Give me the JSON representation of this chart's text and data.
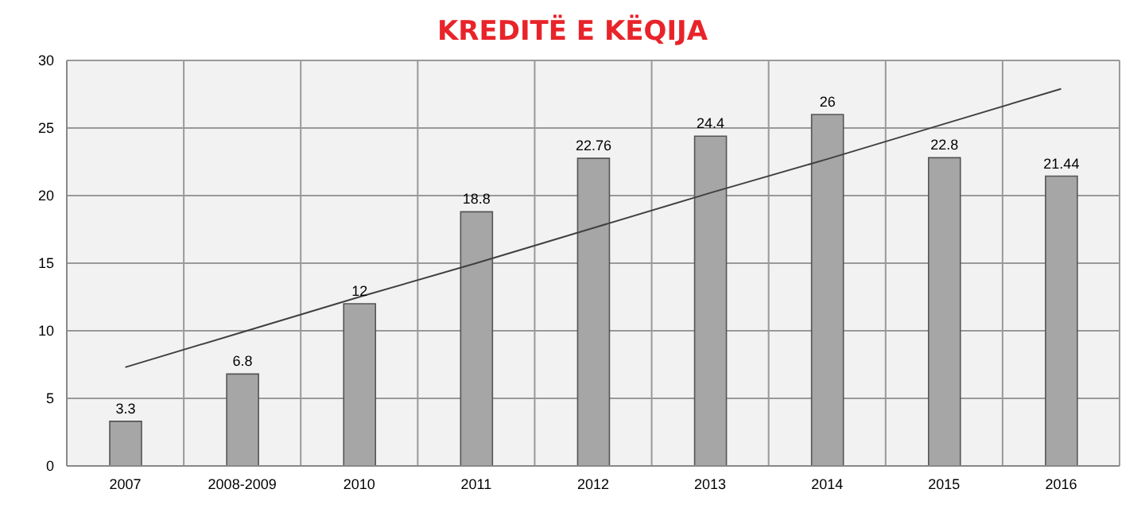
{
  "chart_data": {
    "type": "bar",
    "title": "KREDITË E KËQIJA",
    "categories": [
      "2007",
      "2008-2009",
      "2010",
      "2011",
      "2012",
      "2013",
      "2014",
      "2015",
      "2016"
    ],
    "series": [
      {
        "color": "#a6a6a6",
        "values": [
          3.3,
          6.8,
          12,
          18.8,
          22.76,
          24.4,
          26,
          22.8,
          21.44
        ],
        "value_labels": [
          "3.3",
          "6.8",
          "12",
          "18.8",
          "22.76",
          "24.4",
          "26",
          "22.8",
          "21.44"
        ]
      },
      {
        "type": "line",
        "color": "#404040",
        "values": [
          7.3,
          9.9,
          12.5,
          15.0,
          17.6,
          20.2,
          22.7,
          25.3,
          27.9
        ],
        "marker": "none"
      }
    ],
    "ylim": [
      0,
      30
    ],
    "yticks": [
      0,
      5,
      10,
      15,
      20,
      25,
      30
    ],
    "grid": true
  }
}
